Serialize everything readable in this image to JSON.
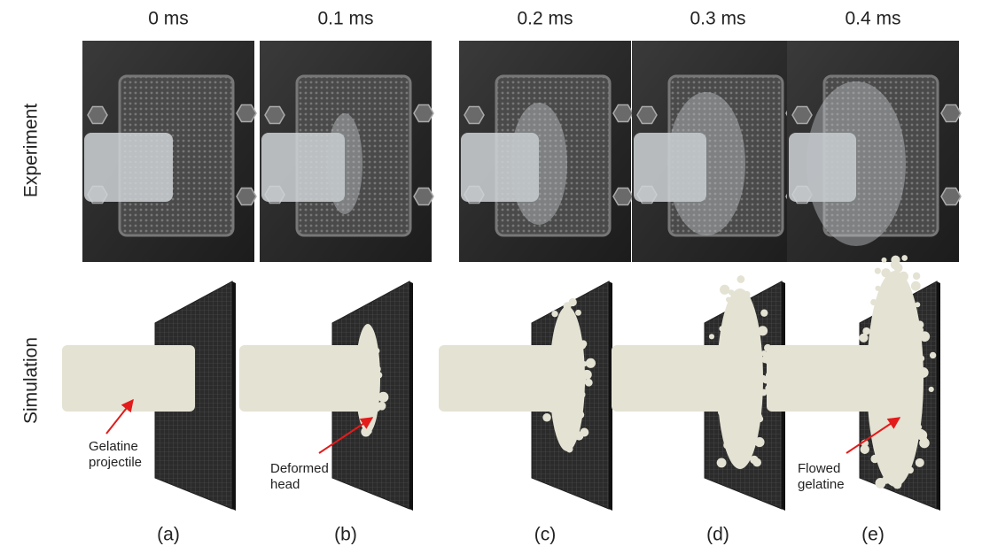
{
  "rows": [
    "Experiment",
    "Simulation"
  ],
  "columns": [
    {
      "time": "0 ms",
      "caption": "(a)",
      "annotation": [
        "Gelatine",
        "projectile"
      ]
    },
    {
      "time": "0.1 ms",
      "caption": "(b)",
      "annotation": [
        "Deformed",
        "head"
      ]
    },
    {
      "time": "0.2 ms",
      "caption": "(c)"
    },
    {
      "time": "0.3 ms",
      "caption": "(d)"
    },
    {
      "time": "0.4 ms",
      "caption": "(e)",
      "annotation": [
        "Flowed",
        "gelatine"
      ]
    }
  ]
}
